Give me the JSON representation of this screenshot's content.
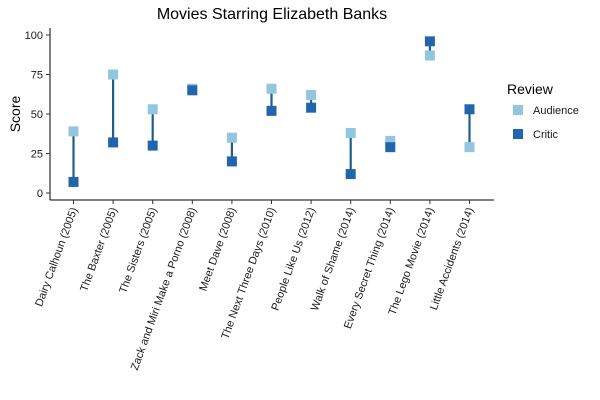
{
  "chart_data": {
    "type": "scatter",
    "title": "Movies Starring Elizabeth Banks",
    "xlabel": "",
    "ylabel": "Score",
    "ylim": [
      0,
      100
    ],
    "y_ticks": [
      0,
      25,
      50,
      75,
      100
    ],
    "grid": false,
    "categories": [
      "Dairy Calhoun (2005)",
      "The Baxter (2005)",
      "The Sisters (2005)",
      "Zack and Miri Make a Porno (2008)",
      "Meet Dave (2008)",
      "The Next Three Days (2010)",
      "People Like Us (2012)",
      "Walk of Shame (2014)",
      "Every Secret Thing (2014)",
      "The Lego Movie (2014)",
      "Little Accidents (2014)"
    ],
    "series": [
      {
        "name": "Audience",
        "color": "#92c5de",
        "values": [
          39,
          75,
          53,
          66,
          35,
          66,
          62,
          38,
          33,
          87,
          29
        ]
      },
      {
        "name": "Critic",
        "color": "#2166ac",
        "values": [
          7,
          32,
          30,
          65,
          20,
          52,
          54,
          12,
          29,
          96,
          53
        ]
      }
    ],
    "connector_color": "#1f5f8b",
    "legend": {
      "title": "Review",
      "placement": "right"
    }
  }
}
